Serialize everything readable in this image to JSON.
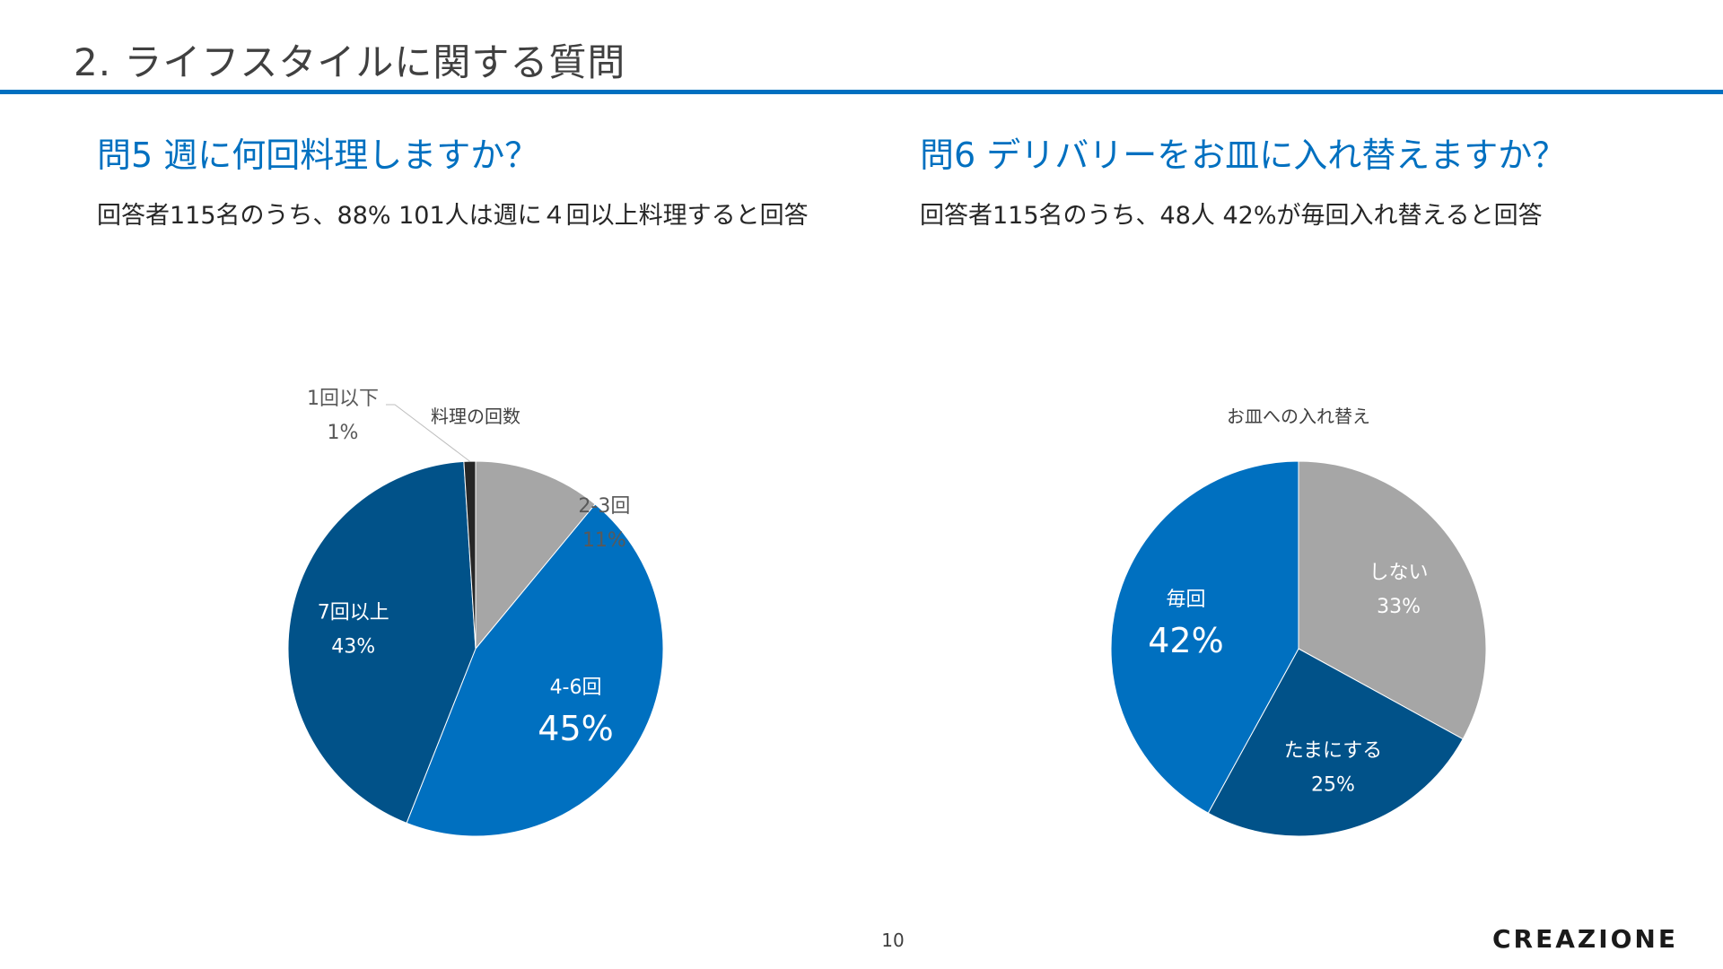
{
  "slide": {
    "title": "2. ライフスタイルに関する質問",
    "page_number": "10",
    "brand": "CREAZIONE",
    "accent_color": "#0070c0"
  },
  "q5": {
    "title": "問5  週に何回料理しますか？",
    "summary": "回答者115名のうち、88% 101人は週に４回以上料理すると回答"
  },
  "q6": {
    "title": "問6  デリバリーをお皿に入れ替えますか？",
    "summary": "回答者115名のうち、48人 42%が毎回入れ替えると回答"
  },
  "chart_data": [
    {
      "type": "pie",
      "title": "料理の回数",
      "start_angle_deg": 0,
      "direction": "clockwise",
      "slices": [
        {
          "label": "2-3回",
          "value": 11,
          "value_label": "11%",
          "color": "#a6a6a6"
        },
        {
          "label": "4-6回",
          "value": 45,
          "value_label": "45%",
          "color": "#0070c0"
        },
        {
          "label": "7回以上",
          "value": 43,
          "value_label": "43%",
          "color": "#015289"
        },
        {
          "label": "1回以下",
          "value": 1,
          "value_label": "1%",
          "color": "#262626"
        }
      ]
    },
    {
      "type": "pie",
      "title": "お皿への入れ替え",
      "start_angle_deg": 0,
      "direction": "clockwise",
      "slices": [
        {
          "label": "しない",
          "value": 33,
          "value_label": "33%",
          "color": "#a6a6a6"
        },
        {
          "label": "たまにする",
          "value": 25,
          "value_label": "25%",
          "color": "#015289"
        },
        {
          "label": "毎回",
          "value": 42,
          "value_label": "42%",
          "color": "#0070c0"
        }
      ]
    }
  ]
}
